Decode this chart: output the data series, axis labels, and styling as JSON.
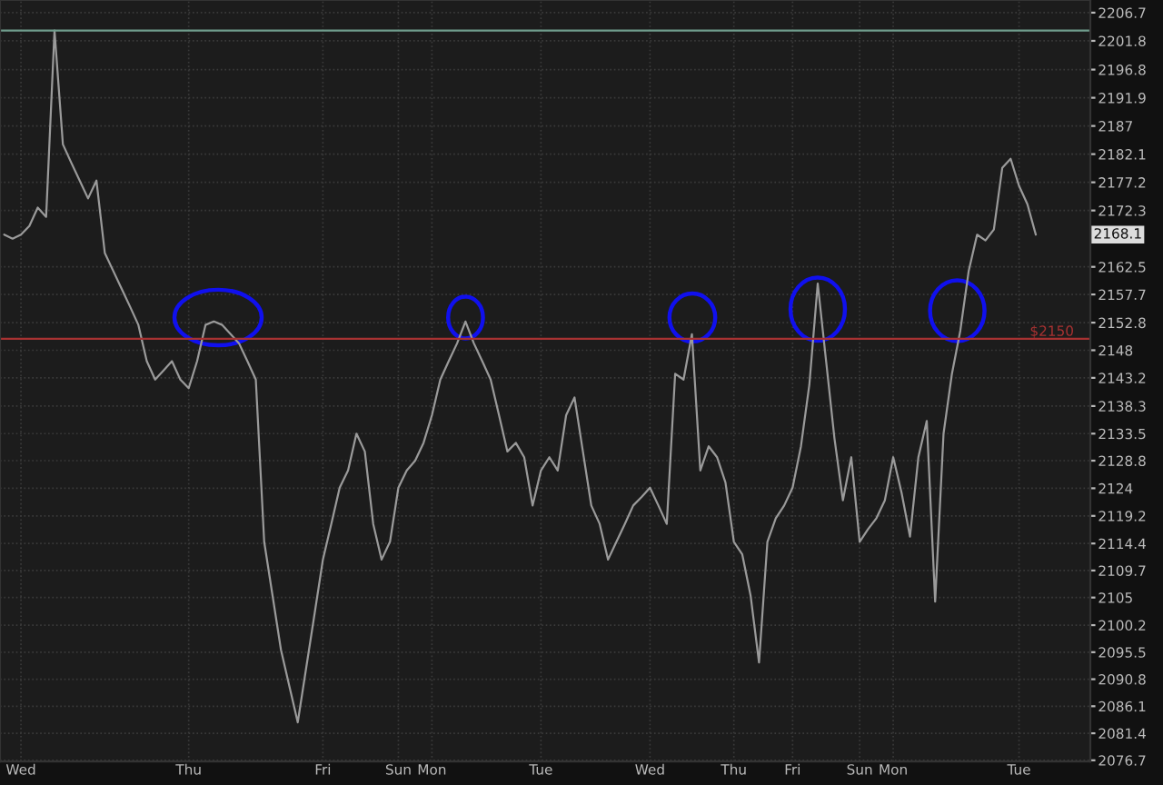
{
  "chart_data": {
    "type": "line",
    "categories": [
      null,
      null,
      "Wed",
      null,
      null,
      null,
      null,
      null,
      null,
      null,
      null,
      null,
      null,
      null,
      null,
      null,
      null,
      null,
      null,
      null,
      null,
      null,
      "Thu",
      null,
      null,
      null,
      null,
      null,
      null,
      null,
      null,
      null,
      null,
      null,
      null,
      null,
      null,
      null,
      "Fri",
      null,
      null,
      null,
      null,
      null,
      null,
      null,
      null,
      "Sun",
      null,
      null,
      null,
      "Mon",
      null,
      null,
      null,
      null,
      null,
      null,
      null,
      null,
      null,
      null,
      null,
      null,
      "Tue",
      null,
      null,
      null,
      null,
      null,
      null,
      null,
      null,
      null,
      null,
      null,
      null,
      "Wed",
      null,
      null,
      null,
      null,
      null,
      null,
      null,
      null,
      null,
      "Thu",
      null,
      null,
      null,
      null,
      null,
      null,
      "Fri",
      null,
      null,
      null,
      null,
      null,
      null,
      null,
      "Sun",
      null,
      null,
      null,
      "Mon",
      null,
      null,
      null,
      null,
      null,
      null,
      null,
      null,
      null,
      null,
      null,
      null,
      null,
      null,
      "Tue",
      null,
      null
    ],
    "series": [
      {
        "color": "#9a9a9a",
        "values": [
          2168.1,
          2167.4,
          2168.1,
          2169.6,
          2172.8,
          2171.2,
          2203.6,
          2183.8,
          2180.6,
          2177.5,
          2174.4,
          2177.5,
          2164.9,
          2161.8,
          2158.7,
          2155.6,
          2152.4,
          2146.1,
          2142.9,
          2144.5,
          2146.1,
          2142.9,
          2141.4,
          2146.1,
          2152.4,
          2153.0,
          2152.4,
          2150.8,
          2149.2,
          2146.1,
          2142.9,
          2114.7,
          2105.3,
          2095.9,
          2089.6,
          2083.3,
          2092.7,
          2102.1,
          2111.6,
          2117.8,
          2124.1,
          2127.1,
          2133.5,
          2130.4,
          2117.8,
          2111.6,
          2114.7,
          2124.1,
          2127.1,
          2128.8,
          2131.9,
          2136.7,
          2142.9,
          2146.1,
          2149.2,
          2153.0,
          2149.2,
          2146.1,
          2142.9,
          2136.7,
          2130.4,
          2131.9,
          2129.4,
          2121.0,
          2127.1,
          2129.4,
          2127.1,
          2136.7,
          2139.8,
          2130.4,
          2121.0,
          2117.8,
          2111.6,
          2114.7,
          2117.8,
          2121.0,
          2122.5,
          2124.1,
          2121.0,
          2117.8,
          2143.9,
          2142.9,
          2150.8,
          2127.1,
          2131.3,
          2129.4,
          2125.0,
          2114.7,
          2112.5,
          2105.3,
          2093.7,
          2114.7,
          2118.8,
          2121.0,
          2124.1,
          2131.3,
          2142.0,
          2159.6,
          2146.1,
          2132.6,
          2121.9,
          2129.4,
          2114.7,
          2116.9,
          2118.8,
          2121.9,
          2129.4,
          2123.2,
          2115.6,
          2129.4,
          2135.7,
          2104.3,
          2133.5,
          2143.9,
          2151.4,
          2161.8,
          2168.1,
          2167.1,
          2169.0,
          2179.7,
          2181.3,
          2176.6,
          2173.4,
          2168.1
        ]
      }
    ],
    "ylim": [
      2076.5,
      2208.9
    ],
    "yticks": [
      2076.7,
      2081.4,
      2086.1,
      2090.8,
      2095.5,
      2100.2,
      2105,
      2109.7,
      2114.4,
      2119.2,
      2124,
      2128.8,
      2133.5,
      2138.3,
      2143.2,
      2148,
      2152.8,
      2157.7,
      2162.5,
      2172.3,
      2177.2,
      2182.1,
      2187,
      2191.9,
      2196.8,
      2201.8,
      2206.7
    ],
    "grid": true,
    "ref_lines": [
      {
        "axis": "y",
        "value": 2203.6,
        "color": "#6f9c8c"
      },
      {
        "axis": "y",
        "value": 2150,
        "label": "$2150",
        "color": "#a83232"
      }
    ],
    "annotations": [
      "2168.1"
    ]
  }
}
